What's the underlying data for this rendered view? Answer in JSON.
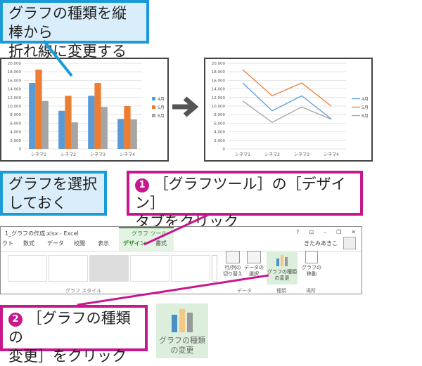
{
  "callouts": {
    "title": [
      "グラフの種類を縦棒から",
      "折れ線に変更する"
    ],
    "select": [
      "グラフを選択",
      "しておく"
    ],
    "step1": {
      "num": "1",
      "lines": [
        "［グラフツール］の［デザイン］",
        "タブをクリック"
      ]
    },
    "step2": {
      "num": "2",
      "lines": [
        "［グラフの種類の",
        "変更］をクリック"
      ]
    }
  },
  "colors": {
    "series1": "#5b9bd5",
    "series2": "#ed7d31",
    "series3": "#a5a5a5",
    "callout_blue": "#1a9ad6",
    "callout_magenta": "#c8168c"
  },
  "chart_data": [
    {
      "type": "bar",
      "categories": [
        "シネマ1",
        "シネマ2",
        "シネマ3",
        "シネマ4"
      ],
      "series": [
        {
          "name": "4月",
          "values": [
            15400,
            8900,
            12400,
            7000
          ]
        },
        {
          "name": "5月",
          "values": [
            18500,
            12400,
            15400,
            10000
          ]
        },
        {
          "name": "6月",
          "values": [
            11200,
            6200,
            9800,
            6900
          ]
        }
      ],
      "ylim": [
        0,
        20000
      ],
      "yticks": [
        "0",
        "2,000",
        "4,000",
        "6,000",
        "8,000",
        "10,000",
        "12,000",
        "14,000",
        "16,000",
        "18,000",
        "20,000"
      ],
      "grid": true,
      "legend": "right"
    },
    {
      "type": "line",
      "categories": [
        "シネマ1",
        "シネマ2",
        "シネマ3",
        "シネマ4"
      ],
      "series": [
        {
          "name": "4月",
          "values": [
            15400,
            8900,
            12400,
            7000
          ]
        },
        {
          "name": "5月",
          "values": [
            18500,
            12400,
            15400,
            10000
          ]
        },
        {
          "name": "6月",
          "values": [
            11200,
            6200,
            9800,
            6900
          ]
        }
      ],
      "ylim": [
        0,
        20000
      ],
      "yticks": [
        "0",
        "2,000",
        "4,000",
        "6,000",
        "8,000",
        "10,000",
        "12,000",
        "14,000",
        "16,000",
        "18,000",
        "20,000"
      ],
      "grid": true,
      "legend": "right"
    }
  ],
  "excel": {
    "title": "1_グラフの作成.xlsx - Excel",
    "context_tab": "グラフ ツール",
    "window_controls": [
      "?",
      "⊡",
      "–",
      "❐",
      "✕"
    ],
    "tabs": [
      "ウト",
      "数式",
      "データ",
      "校閲",
      "表示",
      "デザイン",
      "書式"
    ],
    "user": "きたみあきこ",
    "group_styles": "グラフ スタイル",
    "group_data": "データ",
    "group_type": "種類",
    "group_location": "場所",
    "btn_switch": [
      "行/列の",
      "切り替え"
    ],
    "btn_select": [
      "データの",
      "選択"
    ],
    "btn_change": [
      "グラフの種類",
      "の変更"
    ],
    "btn_move": [
      "グラフの",
      "移動"
    ]
  },
  "zoom_button": [
    "グラフの種類",
    "の変更"
  ]
}
